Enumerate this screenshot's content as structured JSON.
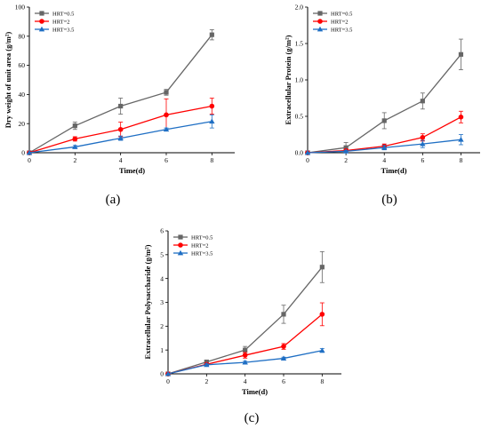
{
  "chart_data": [
    {
      "type": "line",
      "panel_label": "(a)",
      "xlabel": "Time(d)",
      "ylabel": "Dry weight of unit area  (g/m²)",
      "xlim": [
        0,
        9
      ],
      "ylim": [
        0,
        100
      ],
      "xticks": [
        0,
        2,
        4,
        6,
        8
      ],
      "yticks": [
        0,
        20,
        40,
        60,
        80,
        100
      ],
      "x": [
        0,
        2,
        4,
        6,
        8
      ],
      "legend_position": "top-left",
      "series": [
        {
          "name": "HRT=0.5",
          "color": "#666666",
          "marker": "square",
          "values": [
            0,
            18.5,
            32,
            41.5,
            81
          ],
          "errors": [
            0,
            2.5,
            5.5,
            2.0,
            3.5
          ]
        },
        {
          "name": "HRT=2",
          "color": "#ff0000",
          "marker": "circle",
          "values": [
            0,
            9.5,
            16,
            26,
            32
          ],
          "errors": [
            0,
            1.5,
            5.0,
            11.0,
            5.5
          ]
        },
        {
          "name": "HRT=3.5",
          "color": "#1f6fc4",
          "marker": "triangle",
          "values": [
            0,
            4,
            10,
            16,
            21.5
          ],
          "errors": [
            0,
            1.0,
            1.5,
            1.0,
            4.5
          ]
        }
      ]
    },
    {
      "type": "line",
      "panel_label": "(b)",
      "xlabel": "Time(d)",
      "ylabel": "Extracellular Protein  (g/m²)",
      "xlim": [
        0,
        9
      ],
      "ylim": [
        0,
        2.0
      ],
      "xticks": [
        0,
        2,
        4,
        6,
        8
      ],
      "yticks": [
        0.0,
        0.5,
        1.0,
        1.5,
        2.0
      ],
      "x": [
        0,
        2,
        4,
        6,
        8
      ],
      "legend_position": "top-left",
      "series": [
        {
          "name": "HRT=0.5",
          "color": "#666666",
          "marker": "square",
          "values": [
            0,
            0.07,
            0.44,
            0.71,
            1.35
          ],
          "errors": [
            0,
            0.07,
            0.11,
            0.11,
            0.21
          ]
        },
        {
          "name": "HRT=2",
          "color": "#ff0000",
          "marker": "circle",
          "values": [
            0,
            0.03,
            0.09,
            0.21,
            0.49
          ],
          "errors": [
            0,
            0.02,
            0.03,
            0.05,
            0.08
          ]
        },
        {
          "name": "HRT=3.5",
          "color": "#1f6fc4",
          "marker": "triangle",
          "values": [
            0,
            0.02,
            0.07,
            0.12,
            0.18
          ],
          "errors": [
            0,
            0.01,
            0.03,
            0.05,
            0.07
          ]
        }
      ]
    },
    {
      "type": "line",
      "panel_label": "(c)",
      "xlabel": "Time(d)",
      "ylabel": "Extracellular Polysaccharide (g/m²)",
      "xlim": [
        0,
        9
      ],
      "ylim": [
        0,
        6
      ],
      "xticks": [
        0,
        2,
        4,
        6,
        8
      ],
      "yticks": [
        0,
        1,
        2,
        3,
        4,
        5,
        6
      ],
      "x": [
        0,
        2,
        4,
        6,
        8
      ],
      "legend_position": "top-left",
      "series": [
        {
          "name": "HRT=0.5",
          "color": "#666666",
          "marker": "square",
          "values": [
            0,
            0.5,
            1.0,
            2.5,
            4.48
          ],
          "errors": [
            0,
            0.05,
            0.15,
            0.38,
            0.65
          ]
        },
        {
          "name": "HRT=2",
          "color": "#ff0000",
          "marker": "circle",
          "values": [
            0,
            0.4,
            0.78,
            1.15,
            2.5
          ],
          "errors": [
            0,
            0.05,
            0.12,
            0.12,
            0.48
          ]
        },
        {
          "name": "HRT=3.5",
          "color": "#1f6fc4",
          "marker": "triangle",
          "values": [
            0,
            0.38,
            0.48,
            0.65,
            0.98
          ],
          "errors": [
            0,
            0.04,
            0.05,
            0.05,
            0.08
          ]
        }
      ]
    }
  ]
}
